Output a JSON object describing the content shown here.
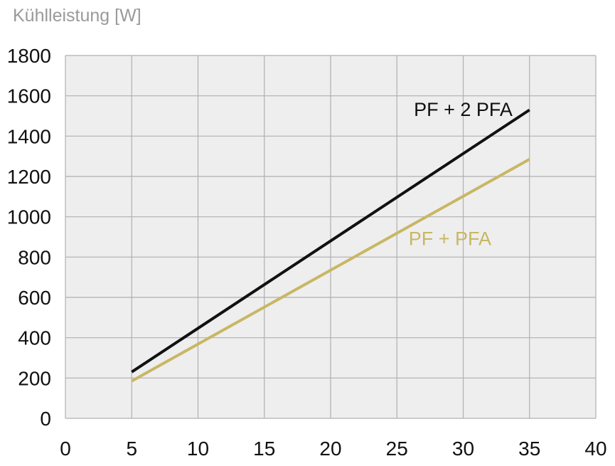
{
  "chart_data": {
    "type": "line",
    "title": "",
    "xlabel": "",
    "ylabel": "Kühlleistung [W]",
    "xlim": [
      0,
      40
    ],
    "ylim": [
      0,
      1800
    ],
    "x_ticks": [
      0,
      5,
      10,
      15,
      20,
      25,
      30,
      35,
      40
    ],
    "y_ticks": [
      0,
      200,
      400,
      600,
      800,
      1000,
      1200,
      1400,
      1600,
      1800
    ],
    "grid": true,
    "plot_background": "#eeeeee",
    "grid_color": "#b0b0b0",
    "series": [
      {
        "name": "PF + 2 PFA",
        "color": "#111111",
        "x": [
          5,
          35
        ],
        "y": [
          230,
          1530
        ]
      },
      {
        "name": "PF + PFA",
        "color": "#c8b764",
        "x": [
          5,
          35
        ],
        "y": [
          185,
          1285
        ]
      }
    ]
  }
}
